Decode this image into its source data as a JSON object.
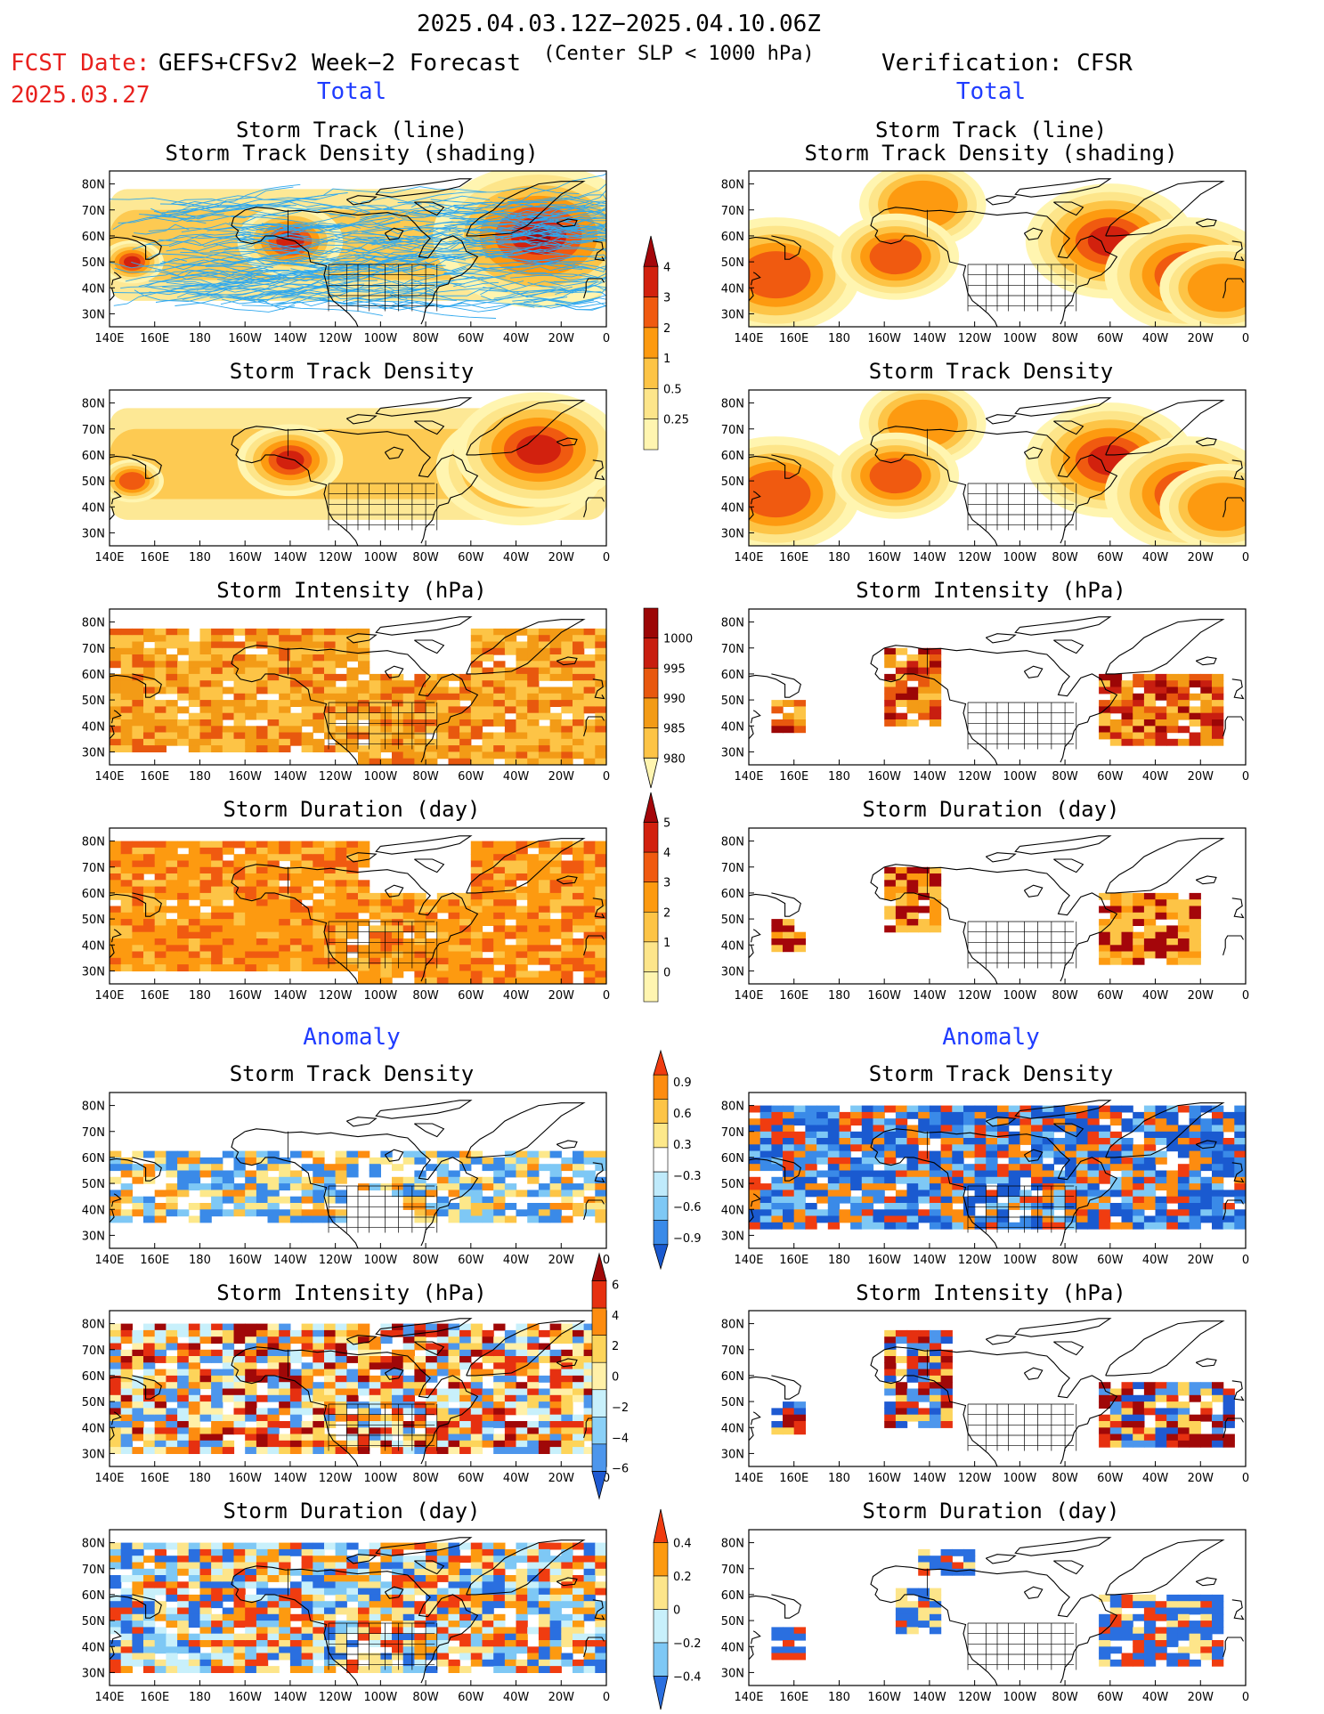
{
  "header": {
    "period": "2025.04.03.12Z−2025.04.10.06Z",
    "fcst_label": "FCST Date:",
    "model": "GEFS+CFSv2 Week−2 Forecast",
    "fcst_date": "2025.03.27",
    "threshold": "(Center SLP < 1000 hPa)",
    "verification": "Verification: CFSR"
  },
  "sections": {
    "left_total": "Total",
    "right_total": "Total",
    "left_anomaly": "Anomaly",
    "right_anomaly": "Anomaly"
  },
  "panel_titles": {
    "track_l1": "Storm Track (line)",
    "track_l2": "Storm Track Density (shading)",
    "density": "Storm Track Density",
    "intensity": "Storm Intensity (hPa)",
    "duration": "Storm Duration (day)"
  },
  "axes": {
    "lon_ticks": [
      "140E",
      "160E",
      "180",
      "160W",
      "140W",
      "120W",
      "100W",
      "80W",
      "60W",
      "40W",
      "20W",
      "0"
    ],
    "lat_ticks": [
      "80N",
      "70N",
      "60N",
      "50N",
      "40N",
      "30N"
    ]
  },
  "colorbars": {
    "track_density_total": {
      "levels": [
        "0.25",
        "0.5",
        "1",
        "2",
        "3",
        "4"
      ],
      "colors": [
        "#fff5b0",
        "#fde58a",
        "#fdc446",
        "#fd9a10",
        "#f05a10",
        "#d2210e",
        "#a4060a"
      ]
    },
    "intensity_total": {
      "levels": [
        "1000",
        "995",
        "990",
        "985",
        "980"
      ],
      "colors": [
        "#fff5b0",
        "#fdc446",
        "#f39b16",
        "#e8580e",
        "#c81e10",
        "#9c0606"
      ]
    },
    "duration_total": {
      "levels": [
        "0",
        "1",
        "2",
        "3",
        "4",
        "5"
      ],
      "colors": [
        "#fff5b0",
        "#fde58a",
        "#fdc446",
        "#fd9a10",
        "#f05a10",
        "#d2210e",
        "#a4060a"
      ]
    },
    "density_anom": {
      "levels": [
        "0.9",
        "0.6",
        "0.3",
        "−0.3",
        "−0.6",
        "−0.9"
      ],
      "colors": [
        "#f03c10",
        "#fd8c10",
        "#fdc446",
        "#fde88a",
        "#ffffff",
        "#bfeafb",
        "#7ec8f5",
        "#3a8ae8",
        "#1a5ad0"
      ]
    },
    "intensity_anom": {
      "levels": [
        "6",
        "4",
        "2",
        "0",
        "−2",
        "−4",
        "−6"
      ],
      "colors": [
        "#a00808",
        "#e63010",
        "#fd8c10",
        "#fdd45a",
        "#fff0a8",
        "#c8f0fb",
        "#8ad0f7",
        "#4d96ec",
        "#1f5ad2"
      ]
    },
    "duration_anom": {
      "levels": [
        "0.4",
        "0.2",
        "0",
        "−0.2",
        "−0.4"
      ],
      "colors": [
        "#f03c10",
        "#fd9a10",
        "#fde58a",
        "#c8f0fb",
        "#7ec8f5",
        "#2a6fe0"
      ]
    }
  },
  "chart_data": [
    {
      "type": "heatmap",
      "panel": "fcst-total-track",
      "title": "Storm Track (line) / Storm Track Density (shading)",
      "lon_range": [
        140,
        360
      ],
      "lat_range": [
        25,
        85
      ],
      "cores": [
        [
          50,
          150,
          1.5,
          4
        ],
        [
          58,
          220,
          2.5,
          4
        ],
        [
          54,
          322,
          3.5,
          5
        ],
        [
          60,
          330,
          5,
          6
        ]
      ],
      "band": {
        "lat": [
          35,
          78
        ],
        "lon": [
          140,
          360
        ],
        "value": 1
      }
    },
    {
      "type": "heatmap",
      "panel": "cfsr-total-track",
      "title": "Storm Track (line) / Storm Track Density (shading)",
      "lon_range": [
        140,
        360
      ],
      "lat_range": [
        25,
        85
      ],
      "cores": [
        [
          45,
          152,
          4,
          3
        ],
        [
          72,
          217,
          3,
          2
        ],
        [
          52,
          205,
          3,
          3
        ],
        [
          58,
          300,
          4,
          4
        ],
        [
          45,
          335,
          4,
          4
        ],
        [
          40,
          350,
          3,
          2.5
        ]
      ],
      "band": null
    },
    {
      "type": "heatmap",
      "panel": "fcst-total-density",
      "title": "Storm Track Density",
      "lon_range": [
        140,
        360
      ],
      "lat_range": [
        25,
        85
      ],
      "cores": [
        [
          50,
          150,
          1.5,
          3
        ],
        [
          58,
          220,
          2.5,
          4
        ],
        [
          55,
          322,
          4,
          6
        ],
        [
          62,
          330,
          4,
          4
        ]
      ],
      "band": {
        "lat": [
          35,
          78
        ],
        "lon": [
          140,
          360
        ],
        "value": 1
      }
    },
    {
      "type": "heatmap",
      "panel": "cfsr-total-density",
      "title": "Storm Track Density",
      "lon_range": [
        140,
        360
      ],
      "lat_range": [
        25,
        85
      ],
      "cores": [
        [
          45,
          152,
          4,
          3
        ],
        [
          72,
          217,
          3,
          2
        ],
        [
          52,
          205,
          3,
          3
        ],
        [
          58,
          300,
          4,
          4
        ],
        [
          45,
          335,
          4,
          4
        ],
        [
          40,
          350,
          3,
          2.5
        ]
      ],
      "band": null
    },
    {
      "type": "heatmap",
      "panel": "fcst-total-intensity",
      "title": "Storm Intensity (hPa)",
      "unit": "hPa",
      "lon_range": [
        140,
        360
      ],
      "lat_range": [
        25,
        85
      ],
      "value": 993
    },
    {
      "type": "heatmap",
      "panel": "cfsr-total-intensity",
      "title": "Storm Intensity (hPa)",
      "unit": "hPa",
      "lon_range": [
        140,
        360
      ],
      "lat_range": [
        25,
        85
      ],
      "value": 988
    },
    {
      "type": "heatmap",
      "panel": "fcst-total-duration",
      "title": "Storm Duration (day)",
      "unit": "day",
      "lon_range": [
        140,
        360
      ],
      "lat_range": [
        25,
        85
      ],
      "value": 3
    },
    {
      "type": "heatmap",
      "panel": "cfsr-total-duration",
      "title": "Storm Duration (day)",
      "unit": "day",
      "lon_range": [
        140,
        360
      ],
      "lat_range": [
        25,
        85
      ],
      "value": 2.5
    },
    {
      "type": "heatmap",
      "panel": "fcst-anom-density",
      "title": "Storm Track Density",
      "lon_range": [
        140,
        360
      ],
      "lat_range": [
        25,
        85
      ]
    },
    {
      "type": "heatmap",
      "panel": "cfsr-anom-density",
      "title": "Storm Track Density",
      "lon_range": [
        140,
        360
      ],
      "lat_range": [
        25,
        85
      ]
    },
    {
      "type": "heatmap",
      "panel": "fcst-anom-intensity",
      "title": "Storm Intensity (hPa)",
      "unit": "hPa",
      "lon_range": [
        140,
        360
      ],
      "lat_range": [
        25,
        85
      ]
    },
    {
      "type": "heatmap",
      "panel": "cfsr-anom-intensity",
      "title": "Storm Intensity (hPa)",
      "unit": "hPa",
      "lon_range": [
        140,
        360
      ],
      "lat_range": [
        25,
        85
      ]
    },
    {
      "type": "heatmap",
      "panel": "fcst-anom-duration",
      "title": "Storm Duration (day)",
      "unit": "day",
      "lon_range": [
        140,
        360
      ],
      "lat_range": [
        25,
        85
      ]
    },
    {
      "type": "heatmap",
      "panel": "cfsr-anom-duration",
      "title": "Storm Duration (day)",
      "unit": "day",
      "lon_range": [
        140,
        360
      ],
      "lat_range": [
        25,
        85
      ]
    }
  ]
}
